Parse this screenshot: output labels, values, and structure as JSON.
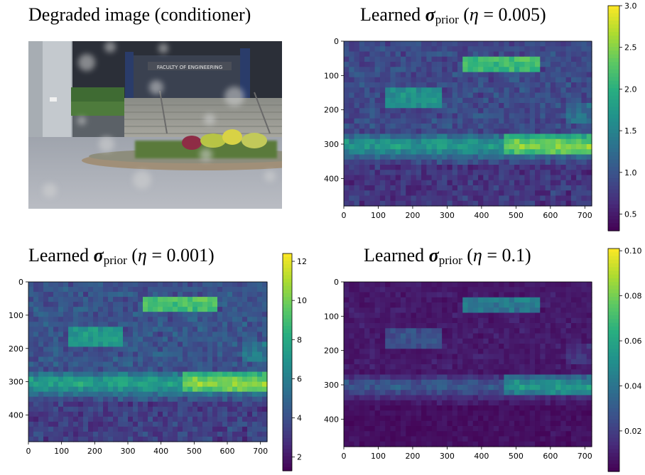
{
  "panels": [
    {
      "id": "degraded",
      "title_text": "Degraded image (conditioner)",
      "photo_sign_text": "FACULTY OF ENGINEERING"
    },
    {
      "id": "eta_0005",
      "title": {
        "prefix": "Learned ",
        "symbol": "σ",
        "subscript": "prior",
        "eta_symbol": "η",
        "eta_value": "0.005"
      }
    },
    {
      "id": "eta_0001",
      "title": {
        "prefix": "Learned ",
        "symbol": "σ",
        "subscript": "prior",
        "eta_symbol": "η",
        "eta_value": "0.001"
      }
    },
    {
      "id": "eta_01",
      "title": {
        "prefix": "Learned ",
        "symbol": "σ",
        "subscript": "prior",
        "eta_symbol": "η",
        "eta_value": "0.1"
      }
    }
  ],
  "chart_data": [
    {
      "type": "heatmap",
      "title": "Learned σ_prior (η = 0.005)",
      "colormap": "viridis",
      "x_ticks": [
        0,
        100,
        200,
        300,
        400,
        500,
        600,
        700
      ],
      "y_ticks": [
        0,
        100,
        200,
        300,
        400
      ],
      "xlim": [
        0,
        720
      ],
      "ylim": [
        480,
        0
      ],
      "colorbar": {
        "range": [
          0.3,
          3.0
        ],
        "ticks": [
          "0.5",
          "1.0",
          "1.5",
          "2.0",
          "2.5",
          "3.0"
        ]
      }
    },
    {
      "type": "heatmap",
      "title": "Learned σ_prior (η = 0.001)",
      "colormap": "viridis",
      "x_ticks": [
        0,
        100,
        200,
        300,
        400,
        500,
        600,
        700
      ],
      "y_ticks": [
        0,
        100,
        200,
        300,
        400
      ],
      "xlim": [
        0,
        720
      ],
      "ylim": [
        480,
        0
      ],
      "colorbar": {
        "range": [
          1.3,
          12.4
        ],
        "ticks": [
          "2",
          "4",
          "6",
          "8",
          "10",
          "12"
        ]
      }
    },
    {
      "type": "heatmap",
      "title": "Learned σ_prior (η = 0.1)",
      "colormap": "viridis",
      "x_ticks": [
        0,
        100,
        200,
        300,
        400,
        500,
        600,
        700
      ],
      "y_ticks": [
        0,
        100,
        200,
        300,
        400
      ],
      "xlim": [
        0,
        720
      ],
      "ylim": [
        480,
        0
      ],
      "colorbar": {
        "range": [
          0.002,
          0.101
        ],
        "ticks": [
          "0.02",
          "0.04",
          "0.06",
          "0.08",
          "0.10"
        ]
      }
    }
  ],
  "colors": {
    "viridis": [
      "#440154",
      "#472d7b",
      "#3b528b",
      "#2c728e",
      "#21918c",
      "#28ae80",
      "#5ec962",
      "#addc30",
      "#fde725"
    ]
  }
}
